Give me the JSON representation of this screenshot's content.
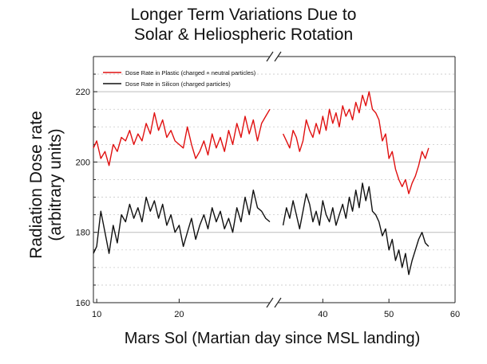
{
  "chart_data": {
    "type": "line",
    "title_lines": [
      "Longer Term Variations Due to",
      "Solar & Heliospheric Rotation"
    ],
    "xlabel": "Mars Sol (Martian day since MSL landing)",
    "ylabel_lines": [
      "Radiation Dose rate",
      "(arbitrary units)"
    ],
    "x_tick_labels": [
      "10",
      "20",
      "40",
      "50",
      "60"
    ],
    "x_tick_values": [
      10,
      20,
      40,
      50,
      60
    ],
    "y_tick_labels": [
      "160",
      "180",
      "200",
      "220"
    ],
    "y_tick_values": [
      160,
      180,
      200,
      220
    ],
    "ylim": [
      160,
      230
    ],
    "x_segments": [
      {
        "range": [
          9.6,
          31
        ]
      },
      {
        "range": [
          33.2,
          60
        ]
      }
    ],
    "axis_break": true,
    "grid": "dashed horizontal",
    "legend_position": "top-left",
    "series": [
      {
        "name": "Dose Rate in Plastic (charged + neutral particles)",
        "color": "#e01010",
        "segments": [
          {
            "x": [
              9.6,
              10,
              10.5,
              11,
              11.5,
              12,
              12.5,
              13,
              13.5,
              14,
              14.5,
              15,
              15.5,
              16,
              16.5,
              17,
              17.5,
              18,
              18.5,
              19,
              19.5,
              20,
              20.5,
              21,
              21.5,
              22,
              22.5,
              23,
              23.5,
              24,
              24.5,
              25,
              25.5,
              26,
              26.5,
              27,
              27.5,
              28,
              28.5,
              29,
              29.5,
              30,
              30.5,
              31
            ],
            "y": [
              204,
              206,
              201,
              203,
              199,
              205,
              203,
              207,
              206,
              209,
              205,
              208,
              206,
              211,
              208,
              214,
              209,
              212,
              207,
              209,
              206,
              205,
              204,
              210,
              205,
              201,
              203,
              206,
              202,
              208,
              204,
              207,
              203,
              209,
              205,
              211,
              207,
              213,
              208,
              212,
              206,
              211,
              213,
              215
            ]
          },
          {
            "x": [
              34,
              34.5,
              35,
              35.5,
              36,
              36.5,
              37,
              37.5,
              38,
              38.5,
              39,
              39.5,
              40,
              40.5,
              41,
              41.5,
              42,
              42.5,
              43,
              43.5,
              44,
              44.5,
              45,
              45.5,
              46,
              46.5,
              47,
              47.5,
              48,
              48.5,
              49,
              49.5,
              50,
              50.5,
              51,
              51.5,
              52,
              52.5,
              53,
              53.5,
              54,
              54.5,
              55,
              55.5,
              56
            ],
            "y": [
              208,
              206,
              204,
              209,
              207,
              203,
              206,
              212,
              209,
              207,
              211,
              208,
              213,
              209,
              215,
              211,
              214,
              210,
              216,
              213,
              215,
              212,
              217,
              214,
              219,
              216,
              220,
              215,
              214,
              212,
              206,
              208,
              201,
              203,
              198,
              195,
              193,
              195,
              191,
              194,
              196,
              199,
              203,
              201,
              204
            ]
          }
        ]
      },
      {
        "name": "Dose Rate in Silicon (charged particles)",
        "color": "#111111",
        "segments": [
          {
            "x": [
              9.6,
              10,
              10.5,
              11,
              11.5,
              12,
              12.5,
              13,
              13.5,
              14,
              14.5,
              15,
              15.5,
              16,
              16.5,
              17,
              17.5,
              18,
              18.5,
              19,
              19.5,
              20,
              20.5,
              21,
              21.5,
              22,
              22.5,
              23,
              23.5,
              24,
              24.5,
              25,
              25.5,
              26,
              26.5,
              27,
              27.5,
              28,
              28.5,
              29,
              29.5,
              30,
              30.5,
              31
            ],
            "y": [
              174,
              176,
              186,
              180,
              174,
              182,
              177,
              185,
              183,
              188,
              184,
              187,
              183,
              190,
              186,
              189,
              184,
              188,
              182,
              185,
              180,
              182,
              176,
              180,
              184,
              178,
              182,
              185,
              181,
              187,
              183,
              186,
              181,
              184,
              180,
              187,
              183,
              190,
              185,
              192,
              187,
              186,
              184,
              183
            ]
          },
          {
            "x": [
              34,
              34.5,
              35,
              35.5,
              36,
              36.5,
              37,
              37.5,
              38,
              38.5,
              39,
              39.5,
              40,
              40.5,
              41,
              41.5,
              42,
              42.5,
              43,
              43.5,
              44,
              44.5,
              45,
              45.5,
              46,
              46.5,
              47,
              47.5,
              48,
              48.5,
              49,
              49.5,
              50,
              50.5,
              51,
              51.5,
              52,
              52.5,
              53,
              53.5,
              54,
              54.5,
              55,
              55.5,
              56
            ],
            "y": [
              182,
              187,
              184,
              189,
              185,
              181,
              186,
              191,
              188,
              183,
              186,
              182,
              189,
              185,
              183,
              187,
              182,
              185,
              188,
              184,
              190,
              186,
              192,
              187,
              194,
              189,
              193,
              186,
              185,
              183,
              179,
              181,
              175,
              178,
              172,
              175,
              170,
              174,
              168,
              172,
              175,
              178,
              180,
              177,
              176
            ]
          }
        ]
      }
    ]
  }
}
